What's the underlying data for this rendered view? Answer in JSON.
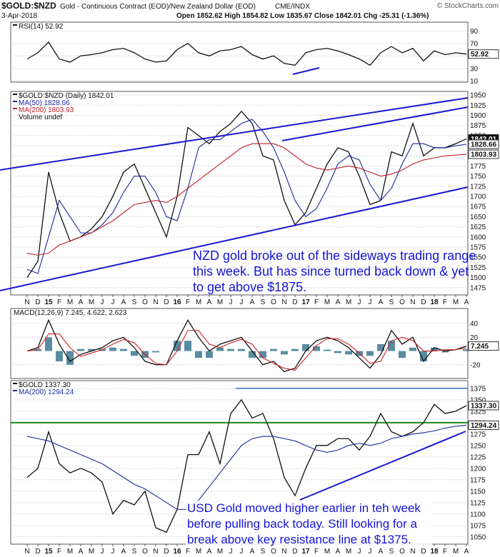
{
  "header": {
    "symbol": "$GOLD:$NZD",
    "description": "Gold - Continuous Contract (EOD)/New Zealand Dollar (EOD)",
    "exchange": "CME/INDX",
    "date": "3-Apr-2018",
    "quote": "Open 1852.62 High 1854.82 Low 1835.67 Close 1842.01 Chg -25.31 (-1.36%)",
    "credit": "© StockCharts.com"
  },
  "chart_data": [
    {
      "type": "line",
      "ylim": [
        8,
        104
      ],
      "yticks": [
        90,
        70,
        50,
        30,
        10
      ],
      "grid": true,
      "series": [
        {
          "name": "RSI(14) 52.92",
          "color": "#111111",
          "values": [
            45,
            55,
            72,
            45,
            40,
            50,
            52,
            55,
            60,
            62,
            55,
            45,
            40,
            42,
            60,
            70,
            55,
            50,
            58,
            60,
            65,
            52,
            45,
            50,
            38,
            35,
            55,
            60,
            62,
            58,
            52,
            45,
            35,
            55,
            65,
            55,
            62,
            42,
            58,
            52,
            55,
            52.92
          ]
        }
      ],
      "tags": [
        52.92
      ]
    },
    {
      "type": "line",
      "ylim": [
        1457,
        1959
      ],
      "yticks": [
        1950,
        1925,
        1900,
        1875,
        1850,
        1825,
        1800,
        1775,
        1750,
        1725,
        1700,
        1675,
        1650,
        1625,
        1600,
        1575,
        1550,
        1525,
        1500,
        1475
      ],
      "grid": true,
      "categories": [
        "N",
        "D",
        "15",
        "F",
        "M",
        "A",
        "M",
        "J",
        "J",
        "A",
        "S",
        "O",
        "N",
        "D",
        "16",
        "F",
        "M",
        "A",
        "M",
        "J",
        "J",
        "A",
        "S",
        "O",
        "N",
        "D",
        "17",
        "F",
        "M",
        "A",
        "M",
        "J",
        "J",
        "A",
        "S",
        "O",
        "N",
        "D",
        "18",
        "F",
        "M",
        "A"
      ],
      "series": [
        {
          "name": "$GOLD:$NZD (Daily) 1842.01",
          "color": "#111111",
          "values": [
            1500,
            1540,
            1760,
            1660,
            1590,
            1600,
            1620,
            1650,
            1700,
            1760,
            1780,
            1720,
            1660,
            1600,
            1700,
            1870,
            1850,
            1830,
            1860,
            1880,
            1910,
            1880,
            1800,
            1790,
            1690,
            1630,
            1660,
            1720,
            1780,
            1820,
            1810,
            1750,
            1680,
            1690,
            1810,
            1800,
            1880,
            1800,
            1820,
            1820,
            1830,
            1842.01
          ]
        },
        {
          "name": "MA(50) 1828.66",
          "color": "#1c2a9c",
          "values": [
            1520,
            1510,
            1600,
            1690,
            1650,
            1610,
            1610,
            1630,
            1660,
            1710,
            1750,
            1750,
            1710,
            1650,
            1640,
            1720,
            1820,
            1840,
            1840,
            1860,
            1880,
            1890,
            1860,
            1820,
            1760,
            1690,
            1650,
            1670,
            1720,
            1780,
            1800,
            1790,
            1730,
            1690,
            1720,
            1780,
            1830,
            1830,
            1820,
            1820,
            1825,
            1828.66
          ]
        },
        {
          "name": "MA(200) 1803.93",
          "color": "#c0202a",
          "values": [
            1560,
            1555,
            1560,
            1580,
            1590,
            1600,
            1610,
            1625,
            1640,
            1660,
            1680,
            1685,
            1690,
            1685,
            1700,
            1720,
            1740,
            1760,
            1780,
            1800,
            1820,
            1830,
            1830,
            1830,
            1820,
            1800,
            1780,
            1770,
            1765,
            1770,
            1775,
            1770,
            1760,
            1750,
            1755,
            1765,
            1780,
            1790,
            1795,
            1800,
            1802,
            1803.93
          ]
        }
      ],
      "legend_extra": "Volume undef",
      "tags": [
        1842.01,
        1828.66,
        1803.93
      ],
      "annotation": [
        "NZD gold broke out of the sideways trading range",
        "this week. But has since turned back down & yet",
        "to get above $1875."
      ]
    },
    {
      "type": "macd",
      "ylim": [
        -40,
        62
      ],
      "yticks": [
        40,
        20,
        -20
      ],
      "grid": true,
      "legend": "MACD(12,26,9) 7.245, 4.622, 2.623",
      "series": [
        {
          "color": "#111111",
          "values": [
            0,
            5,
            45,
            10,
            -15,
            -5,
            0,
            5,
            15,
            20,
            5,
            -15,
            -20,
            -20,
            15,
            45,
            20,
            0,
            10,
            15,
            20,
            0,
            -20,
            -15,
            -30,
            -25,
            0,
            15,
            20,
            15,
            5,
            -10,
            -25,
            -5,
            30,
            10,
            20,
            -15,
            5,
            0,
            2,
            7.245
          ]
        },
        {
          "color": "#d02020",
          "values": [
            0,
            2,
            25,
            25,
            5,
            -8,
            -3,
            2,
            10,
            17,
            12,
            -5,
            -18,
            -20,
            0,
            30,
            30,
            10,
            5,
            12,
            17,
            10,
            -10,
            -18,
            -25,
            -28,
            -10,
            8,
            18,
            18,
            10,
            -3,
            -18,
            -15,
            15,
            20,
            15,
            0,
            0,
            2,
            2,
            4.622
          ]
        }
      ],
      "histogram": {
        "color": "#2f6f8a",
        "values": [
          0,
          3,
          20,
          -15,
          -20,
          3,
          3,
          3,
          5,
          3,
          -7,
          -10,
          -2,
          0,
          15,
          15,
          -10,
          -10,
          5,
          3,
          3,
          -10,
          -10,
          3,
          -5,
          3,
          10,
          7,
          2,
          -3,
          -5,
          -7,
          -7,
          10,
          15,
          -10,
          5,
          -15,
          5,
          -2,
          0,
          2.623
        ]
      },
      "tags": [
        7.245
      ]
    },
    {
      "type": "line",
      "ylim": [
        1034,
        1392
      ],
      "yticks": [
        1375,
        1350,
        1325,
        1300,
        1275,
        1250,
        1225,
        1200,
        1175,
        1150,
        1125,
        1100,
        1075,
        1050
      ],
      "grid": true,
      "categories": [
        "N",
        "D",
        "15",
        "F",
        "M",
        "A",
        "M",
        "J",
        "J",
        "A",
        "S",
        "O",
        "N",
        "D",
        "16",
        "F",
        "M",
        "A",
        "M",
        "J",
        "J",
        "A",
        "S",
        "O",
        "N",
        "D",
        "17",
        "F",
        "M",
        "A",
        "M",
        "J",
        "J",
        "A",
        "S",
        "O",
        "N",
        "D",
        "18",
        "F",
        "M",
        "A"
      ],
      "series": [
        {
          "name": "$GOLD 1337.30",
          "color": "#111111",
          "values": [
            1180,
            1200,
            1280,
            1210,
            1190,
            1200,
            1190,
            1170,
            1100,
            1130,
            1120,
            1150,
            1070,
            1060,
            1110,
            1230,
            1230,
            1280,
            1210,
            1320,
            1350,
            1310,
            1320,
            1265,
            1180,
            1140,
            1200,
            1250,
            1250,
            1265,
            1265,
            1240,
            1270,
            1320,
            1280,
            1270,
            1280,
            1300,
            1340,
            1320,
            1325,
            1337.3
          ]
        },
        {
          "name": "MA(200) 1294.24",
          "color": "#1c2a9c",
          "values": [
            1270,
            1265,
            1260,
            1250,
            1240,
            1230,
            1220,
            1210,
            1195,
            1180,
            1165,
            1155,
            1140,
            1125,
            1110,
            1110,
            1130,
            1160,
            1190,
            1220,
            1250,
            1265,
            1270,
            1270,
            1265,
            1260,
            1250,
            1240,
            1235,
            1240,
            1250,
            1255,
            1250,
            1255,
            1265,
            1270,
            1275,
            1278,
            1282,
            1288,
            1292,
            1294.24
          ]
        }
      ],
      "hlines": [
        {
          "value": 1375,
          "color": "#5b8fd6"
        },
        {
          "value": 1300,
          "color": "#1a8a1a"
        }
      ],
      "tags": [
        {
          "value": 1337.3,
          "label": "1337.30"
        },
        1294.24
      ],
      "annotation": [
        "USD Gold moved higher earlier in teh week",
        "before pulling back today. Still looking for a",
        "break above key resistance line at $1375."
      ]
    }
  ]
}
